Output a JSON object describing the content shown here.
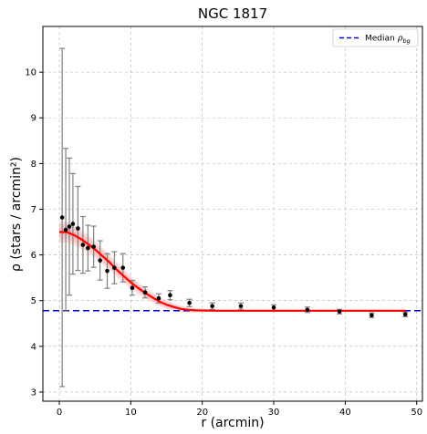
{
  "chart_data": {
    "type": "scatter",
    "title": "NGC 1817",
    "xlabel": "r (arcmin)",
    "ylabel": "ρ (stars / arcmin²)",
    "xlim": [
      -2.3,
      50.8
    ],
    "ylim": [
      2.8,
      11.0
    ],
    "x_ticks": [
      0,
      10,
      20,
      30,
      40,
      50
    ],
    "y_ticks": [
      3,
      4,
      5,
      6,
      7,
      8,
      9,
      10
    ],
    "grid": true,
    "legend": {
      "position": "top-right",
      "label": "Median",
      "label_math": "ρ",
      "label_sub": "bg"
    },
    "colors": {
      "points": "#000000",
      "errorbars": "#808080",
      "fit": "#ff0000",
      "fit_band": "#f4a6a6",
      "background": "#0000cc",
      "grid": "#b0b0b0"
    },
    "points": [
      {
        "x": 0.4,
        "y": 6.82,
        "err": 3.7
      },
      {
        "x": 0.9,
        "y": 6.55,
        "err": 1.78
      },
      {
        "x": 1.4,
        "y": 6.62,
        "err": 1.5
      },
      {
        "x": 1.9,
        "y": 6.68,
        "err": 1.1
      },
      {
        "x": 2.6,
        "y": 6.58,
        "err": 0.92
      },
      {
        "x": 3.3,
        "y": 6.22,
        "err": 0.62
      },
      {
        "x": 4.0,
        "y": 6.15,
        "err": 0.5
      },
      {
        "x": 4.8,
        "y": 6.18,
        "err": 0.45
      },
      {
        "x": 5.7,
        "y": 5.88,
        "err": 0.43
      },
      {
        "x": 6.7,
        "y": 5.65,
        "err": 0.38
      },
      {
        "x": 7.7,
        "y": 5.72,
        "err": 0.35
      },
      {
        "x": 8.9,
        "y": 5.72,
        "err": 0.31
      },
      {
        "x": 10.2,
        "y": 5.28,
        "err": 0.16
      },
      {
        "x": 12.0,
        "y": 5.18,
        "err": 0.12
      },
      {
        "x": 13.9,
        "y": 5.05,
        "err": 0.1
      },
      {
        "x": 15.5,
        "y": 5.12,
        "err": 0.1
      },
      {
        "x": 18.2,
        "y": 4.95,
        "err": 0.08
      },
      {
        "x": 21.4,
        "y": 4.88,
        "err": 0.07
      },
      {
        "x": 25.4,
        "y": 4.88,
        "err": 0.07
      },
      {
        "x": 30.0,
        "y": 4.85,
        "err": 0.06
      },
      {
        "x": 34.7,
        "y": 4.8,
        "err": 0.06
      },
      {
        "x": 39.2,
        "y": 4.76,
        "err": 0.05
      },
      {
        "x": 43.7,
        "y": 4.68,
        "err": 0.05
      },
      {
        "x": 48.4,
        "y": 4.7,
        "err": 0.05
      }
    ],
    "background_level": 4.78,
    "fit_curve": {
      "x": [
        0,
        1,
        2,
        3,
        4,
        5,
        6,
        7,
        8,
        9,
        10,
        11,
        12,
        13,
        14,
        15,
        16,
        17,
        18,
        19,
        20,
        22,
        25,
        30,
        35,
        40,
        45,
        48.5
      ],
      "y": [
        6.5,
        6.5,
        6.44,
        6.35,
        6.24,
        6.12,
        5.98,
        5.84,
        5.68,
        5.54,
        5.4,
        5.28,
        5.17,
        5.07,
        4.98,
        4.91,
        4.86,
        4.82,
        4.8,
        4.79,
        4.785,
        4.78,
        4.78,
        4.78,
        4.78,
        4.78,
        4.78,
        4.78
      ]
    }
  }
}
